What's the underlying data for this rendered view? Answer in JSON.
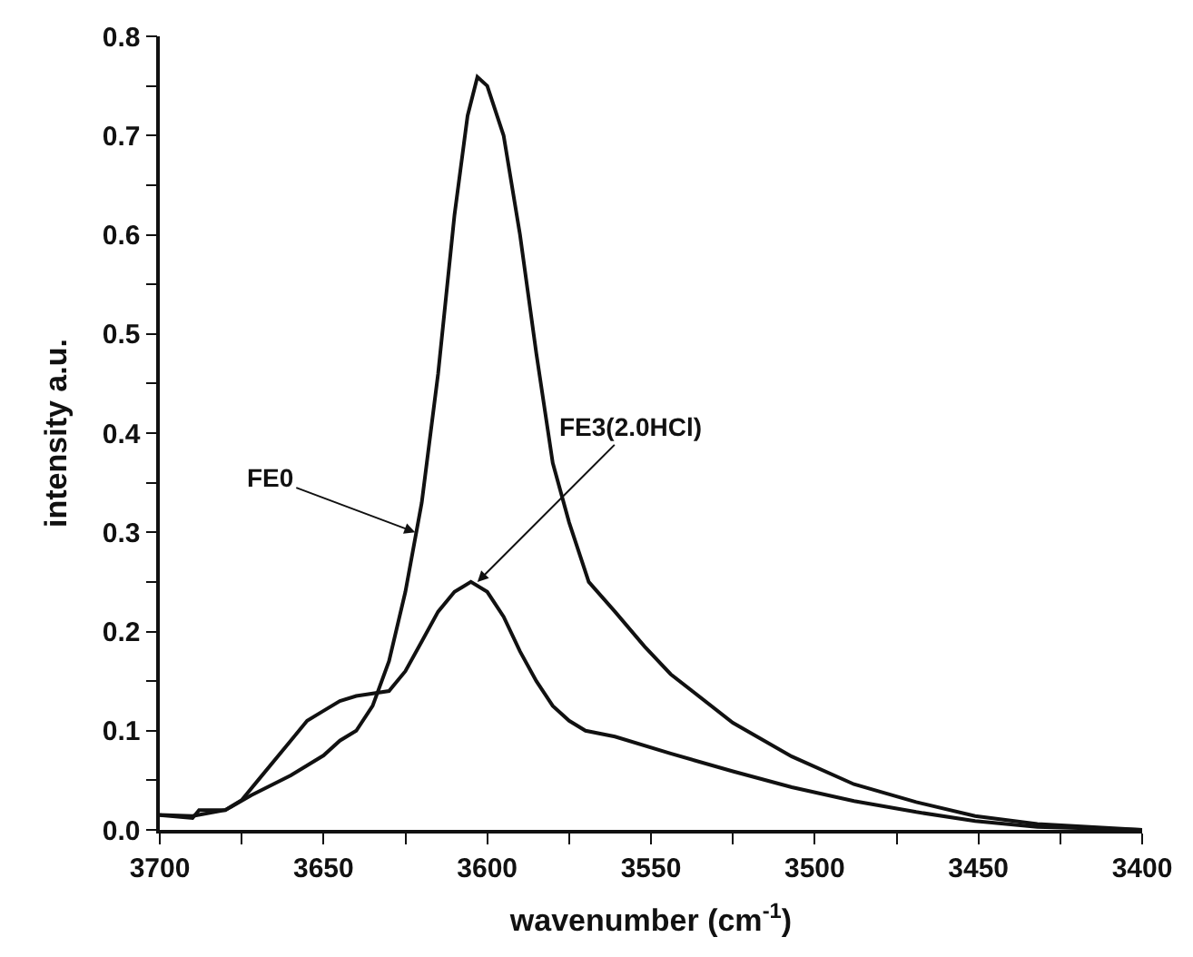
{
  "chart_data": {
    "type": "line",
    "xlabel": "wavenumber (cm$^{-1}$)",
    "ylabel": "intensity a.u.",
    "xlim": [
      3700,
      3400
    ],
    "ylim": [
      0,
      0.8
    ],
    "xticks": [
      3700,
      {
        "value": 3675,
        "label": null
      },
      3650,
      {
        "value": 3625,
        "label": null
      },
      3600,
      {
        "value": 3575,
        "label": null
      },
      3550,
      {
        "value": 3525,
        "label": null
      },
      3500,
      {
        "value": 3475,
        "label": null
      },
      3450,
      {
        "value": 3425,
        "label": null
      },
      3400
    ],
    "yticks": [
      {
        "value": 0,
        "label": "0.0"
      },
      {
        "value": 0.05,
        "label": null
      },
      0.1,
      {
        "value": 0.15,
        "label": null
      },
      0.2,
      {
        "value": 0.25,
        "label": null
      },
      0.3,
      {
        "value": 0.35,
        "label": null
      },
      0.4,
      {
        "value": 0.45,
        "label": null
      },
      0.5,
      {
        "value": 0.55,
        "label": null
      },
      0.6,
      {
        "value": 0.65,
        "label": null
      },
      0.7,
      {
        "value": 0.75,
        "label": null
      },
      0.8
    ],
    "marker": "none",
    "line_style": "solid",
    "series": [
      {
        "color": "#111111",
        "x": [
          3700,
          3690,
          3680,
          3672,
          3660,
          3650,
          3645,
          3640,
          3635,
          3630,
          3625,
          3620,
          3615,
          3610,
          3606,
          3603,
          3600,
          3595,
          3590,
          3585,
          3580,
          3575,
          3569,
          3561,
          3552,
          3544,
          3525,
          3507,
          3488,
          3469,
          3451,
          3432,
          3400
        ],
        "values": [
          0.015,
          0.014,
          0.02,
          0.035,
          0.055,
          0.075,
          0.09,
          0.1,
          0.125,
          0.17,
          0.24,
          0.33,
          0.46,
          0.62,
          0.72,
          0.759,
          0.75,
          0.7,
          0.6,
          0.48,
          0.37,
          0.31,
          0.25,
          0.22,
          0.185,
          0.157,
          0.108,
          0.074,
          0.046,
          0.028,
          0.014,
          0.006,
          0
        ]
      },
      {
        "color": "#111111",
        "x": [
          3700,
          3690,
          3688,
          3680,
          3675,
          3670,
          3660,
          3655,
          3650,
          3645,
          3640,
          3630,
          3625,
          3620,
          3615,
          3610,
          3605,
          3600,
          3595,
          3590,
          3585,
          3580,
          3575,
          3570,
          3561,
          3544,
          3525,
          3507,
          3488,
          3469,
          3451,
          3432,
          3400
        ],
        "values": [
          0.015,
          0.012,
          0.02,
          0.02,
          0.03,
          0.05,
          0.09,
          0.11,
          0.12,
          0.13,
          0.135,
          0.14,
          0.16,
          0.19,
          0.22,
          0.24,
          0.25,
          0.24,
          0.215,
          0.18,
          0.15,
          0.125,
          0.11,
          0.1,
          0.094,
          0.077,
          0.059,
          0.043,
          0.029,
          0.018,
          0.009,
          0.003,
          0
        ]
      }
    ],
    "annotations": [
      {
        "text": "FE0",
        "x": 3622,
        "y": 0.3
      },
      {
        "text": "FE3(2.0HCl)",
        "x": 3603,
        "y": 0.25
      }
    ]
  }
}
